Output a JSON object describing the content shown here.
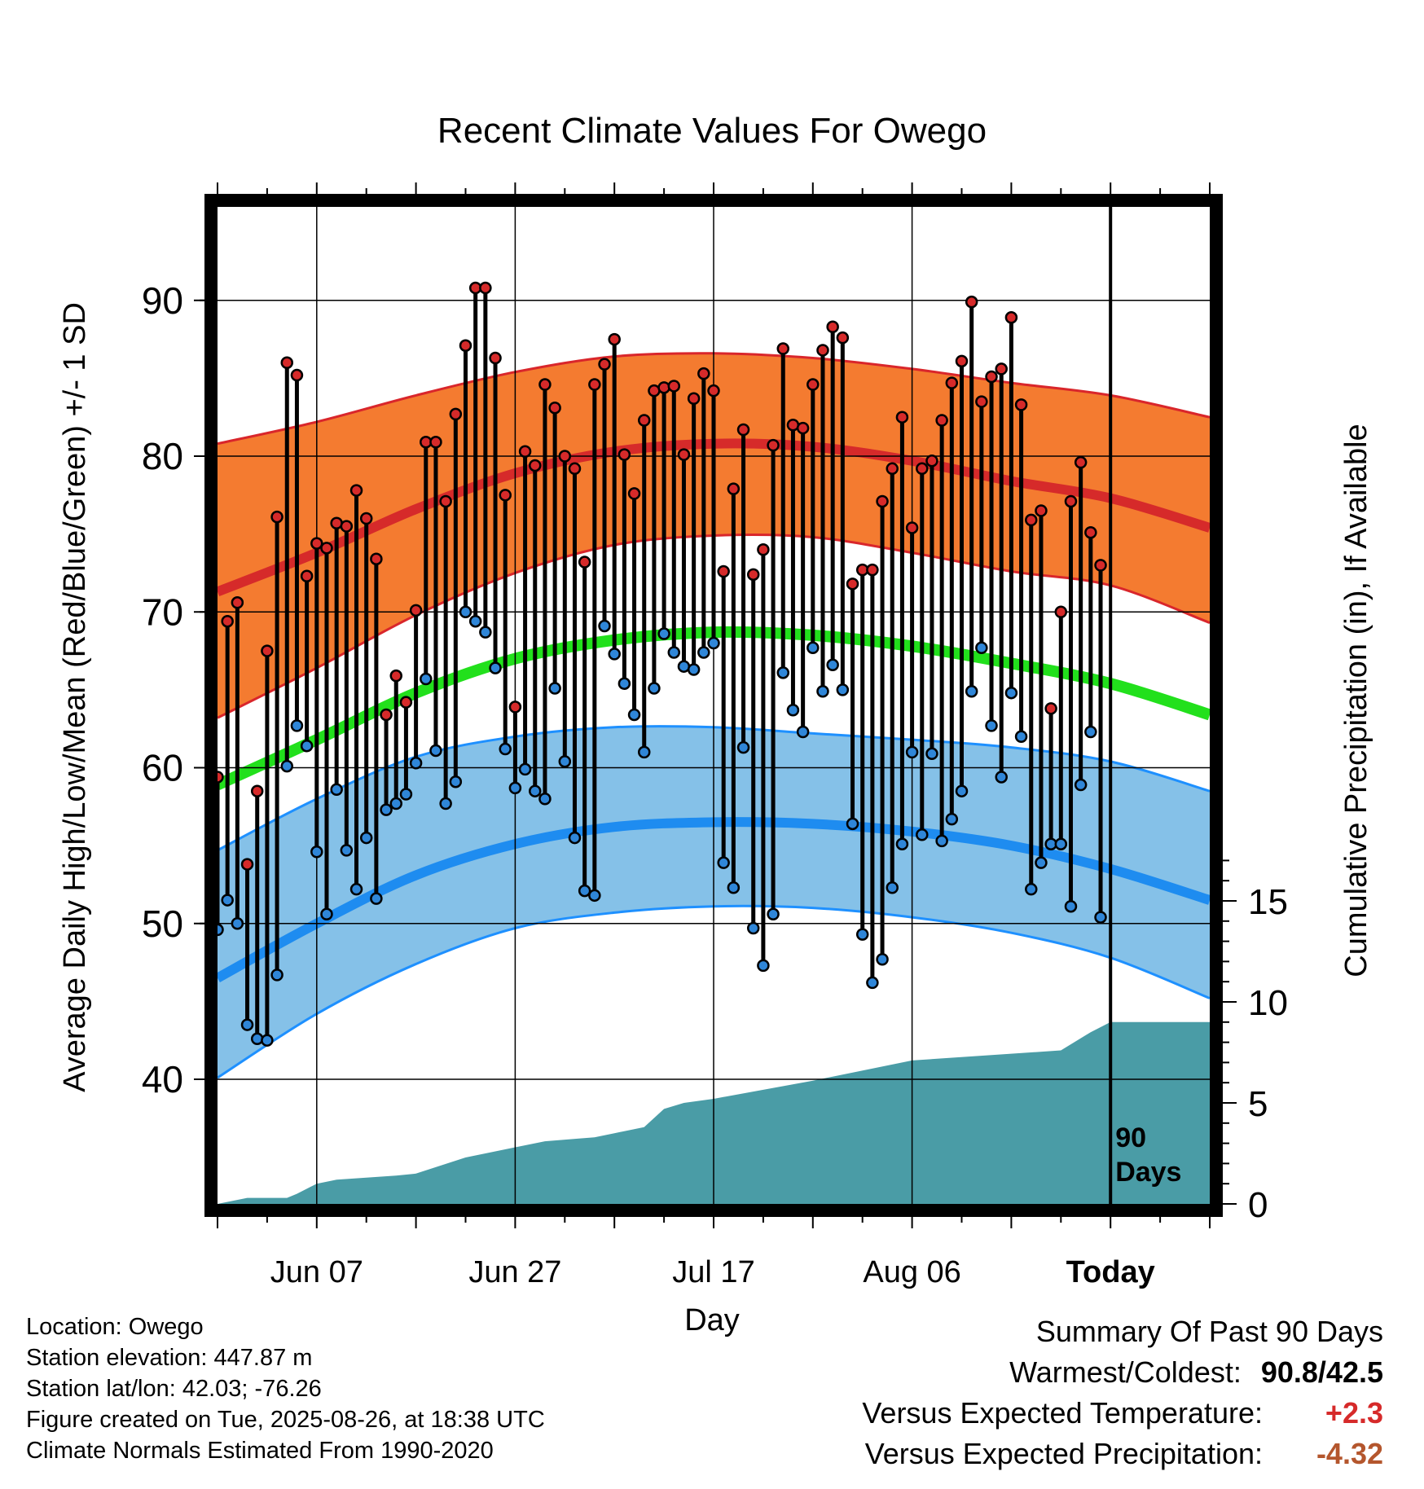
{
  "chart_data": {
    "type": "line",
    "title": "Recent Climate Values For Owego",
    "xlabel": "Day",
    "ylabel_left": "Average Daily High/Low/Mean (Red/Blue/Green) +/- 1 SD",
    "ylabel_right": "Cumulative Precipitation (in), If Available",
    "x_tick_labels": [
      {
        "day": 10,
        "label": "Jun 07"
      },
      {
        "day": 30,
        "label": "Jun 27"
      },
      {
        "day": 50,
        "label": "Jul 17"
      },
      {
        "day": 70,
        "label": "Aug 06"
      },
      {
        "day": 90,
        "label": "Today"
      }
    ],
    "xlim": [
      0,
      100
    ],
    "ylim_temp": [
      32,
      96
    ],
    "y_ticks_temp": [
      40,
      50,
      60,
      70,
      80,
      90
    ],
    "y_ticks_precip": [
      0,
      5,
      10,
      15
    ],
    "today_marker": {
      "day": 90,
      "label_line1": "90",
      "label_line2": "Days"
    },
    "colors": {
      "high_band": "#f47b30",
      "high_edge": "#d9262b",
      "high_mean": "#d62a2a",
      "low_band": "#85c1e8",
      "low_edge": "#1e90ff",
      "low_mean": "#1e8cf0",
      "mean_line": "#22e01c",
      "precip_fill": "#4a9ca6",
      "high_dot": "#d62a2a",
      "low_dot": "#2f86d8",
      "temp_anomaly": "#d62a2a",
      "precip_anomaly": "#b4562d"
    },
    "normals": {
      "days": [
        0,
        10,
        20,
        30,
        40,
        50,
        60,
        70,
        80,
        90,
        100
      ],
      "high_mean": [
        71.3,
        73.8,
        76.6,
        78.9,
        80.3,
        80.8,
        80.6,
        79.7,
        78.4,
        77.3,
        75.4
      ],
      "high_upper": [
        80.8,
        82.2,
        83.9,
        85.4,
        86.4,
        86.6,
        86.3,
        85.6,
        84.7,
        83.9,
        82.5
      ],
      "high_lower": [
        63.2,
        66.4,
        69.8,
        72.5,
        74.3,
        74.9,
        74.8,
        73.8,
        72.6,
        71.7,
        69.3
      ],
      "low_mean": [
        46.5,
        50.0,
        53.1,
        55.1,
        56.2,
        56.5,
        56.4,
        55.9,
        55.0,
        53.5,
        51.5
      ],
      "low_upper": [
        54.7,
        58.0,
        60.7,
        62.0,
        62.6,
        62.6,
        62.2,
        61.8,
        61.3,
        60.4,
        58.5
      ],
      "low_lower": [
        40.1,
        44.2,
        47.4,
        49.7,
        50.7,
        51.1,
        51.0,
        50.4,
        49.4,
        47.8,
        45.2
      ],
      "mean": [
        58.9,
        61.8,
        64.8,
        67.0,
        68.2,
        68.7,
        68.5,
        67.8,
        66.7,
        65.4,
        63.4
      ]
    },
    "daily": {
      "days": [
        0,
        1,
        2,
        3,
        4,
        5,
        6,
        7,
        8,
        9,
        10,
        11,
        12,
        13,
        14,
        15,
        16,
        17,
        18,
        19,
        20,
        21,
        22,
        23,
        24,
        25,
        26,
        27,
        28,
        29,
        30,
        31,
        32,
        33,
        34,
        35,
        36,
        37,
        38,
        39,
        40,
        41,
        42,
        43,
        44,
        45,
        46,
        47,
        48,
        49,
        50,
        51,
        52,
        53,
        54,
        55,
        56,
        57,
        58,
        59,
        60,
        61,
        62,
        63,
        64,
        65,
        66,
        67,
        68,
        69,
        70,
        71,
        72,
        73,
        74,
        75,
        76,
        77,
        78,
        79,
        80,
        81,
        82,
        83,
        84,
        85,
        86,
        87,
        88,
        89
      ],
      "high": [
        59.4,
        69.4,
        70.6,
        53.8,
        58.5,
        67.5,
        76.1,
        86.0,
        85.2,
        72.3,
        74.4,
        74.1,
        75.7,
        75.5,
        77.8,
        76.0,
        73.4,
        63.4,
        65.9,
        64.2,
        70.1,
        80.9,
        80.9,
        77.1,
        82.7,
        87.1,
        90.8,
        90.8,
        86.3,
        77.5,
        63.9,
        80.3,
        79.4,
        84.6,
        83.1,
        80.0,
        79.2,
        73.2,
        84.6,
        85.9,
        87.5,
        80.1,
        77.6,
        82.3,
        84.2,
        84.4,
        84.5,
        80.1,
        83.7,
        85.3,
        84.2,
        72.6,
        77.9,
        81.7,
        72.4,
        74.0,
        80.7,
        86.9,
        82.0,
        81.8,
        84.6,
        86.8,
        88.3,
        87.6,
        71.8,
        72.7,
        72.7,
        77.1,
        79.2,
        82.5,
        75.4,
        79.2,
        79.7,
        82.3,
        84.7,
        86.1,
        89.9,
        83.5,
        85.1,
        85.6,
        88.9,
        83.3,
        75.9,
        76.5,
        63.8,
        70.0,
        77.1,
        79.6,
        75.1,
        73.0
      ],
      "low": [
        49.6,
        51.5,
        50.0,
        43.5,
        42.6,
        42.5,
        46.7,
        60.1,
        62.7,
        61.4,
        54.6,
        50.6,
        58.6,
        54.7,
        52.2,
        55.5,
        51.6,
        57.3,
        57.7,
        58.3,
        60.3,
        65.7,
        61.1,
        57.7,
        59.1,
        70.0,
        69.4,
        68.7,
        66.4,
        61.2,
        58.7,
        59.9,
        58.5,
        58.0,
        65.1,
        60.4,
        55.5,
        52.1,
        51.8,
        69.1,
        67.3,
        65.4,
        63.4,
        61.0,
        65.1,
        68.6,
        67.4,
        66.5,
        66.3,
        67.4,
        68.0,
        53.9,
        52.3,
        61.3,
        49.7,
        47.3,
        50.6,
        66.1,
        63.7,
        62.3,
        67.7,
        64.9,
        66.6,
        65.0,
        56.4,
        49.3,
        46.2,
        47.7,
        52.3,
        55.1,
        61.0,
        55.7,
        60.9,
        55.3,
        56.7,
        58.5,
        64.9,
        67.7,
        62.7,
        59.4,
        64.8,
        62.0,
        52.2,
        53.9,
        55.1,
        55.1,
        51.1,
        58.9,
        62.3,
        50.4
      ]
    },
    "precip": {
      "days": [
        0,
        3,
        7,
        8,
        10,
        12,
        15,
        18,
        20,
        25,
        27,
        29,
        33,
        38,
        40,
        43,
        45,
        47,
        50,
        60,
        70,
        85,
        88,
        90
      ],
      "cumulative": [
        0,
        0.3,
        0.3,
        0.5,
        1.0,
        1.2,
        1.3,
        1.4,
        1.5,
        2.3,
        2.5,
        2.7,
        3.1,
        3.3,
        3.5,
        3.8,
        4.7,
        5.0,
        5.2,
        6.1,
        7.1,
        7.6,
        8.5,
        9.0
      ]
    }
  },
  "info": {
    "location": "Location: Owego",
    "elevation": "Station elevation: 447.87 m",
    "latlon": "Station lat/lon: 42.03; -76.26",
    "created": "Figure created on Tue, 2025-08-26, at 18:38 UTC",
    "normals": "Climate Normals Estimated From 1990-2020"
  },
  "summary": {
    "title": "Summary Of Past 90 Days",
    "warm_cold_label": "Warmest/Coldest:",
    "warm_cold_value": "90.8/42.5",
    "temp_label": "Versus Expected Temperature:",
    "temp_value": "+2.3",
    "precip_label": "Versus Expected Precipitation:",
    "precip_value": "-4.32"
  }
}
